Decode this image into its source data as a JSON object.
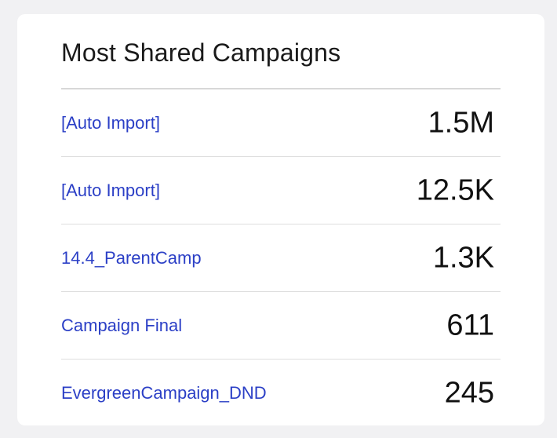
{
  "widget": {
    "title": "Most Shared Campaigns",
    "link_color": "#2b3fc6",
    "rows": [
      {
        "name": "[Auto Import]",
        "shares": "1.5M"
      },
      {
        "name": "[Auto Import]",
        "shares": "12.5K"
      },
      {
        "name": "14.4_ParentCamp",
        "shares": "1.3K"
      },
      {
        "name": "Campaign Final",
        "shares": "611"
      },
      {
        "name": "EvergreenCampaign_DND",
        "shares": "245"
      }
    ]
  }
}
